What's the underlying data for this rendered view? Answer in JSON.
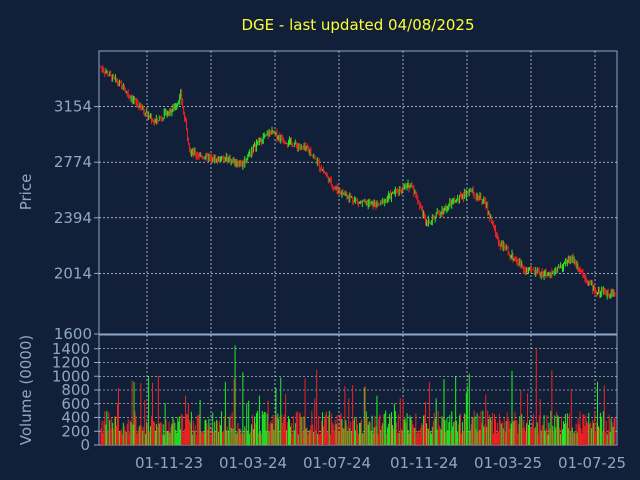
{
  "chart_data": {
    "type": "candlestick",
    "title": "DGE - last updated 04/08/2025",
    "price_panel": {
      "ylabel": "Price",
      "ylim": [
        1600,
        3534
      ],
      "yticks": [
        1600,
        2014,
        2394,
        2774,
        3154
      ],
      "grid": true
    },
    "volume_panel": {
      "ylabel": "Volume (0000)",
      "ylim": [
        0,
        1600
      ],
      "yticks": [
        0,
        200,
        400,
        600,
        800,
        1000,
        1200,
        1400
      ],
      "grid": true
    },
    "x_tick_labels": [
      "01-11-23",
      "01-03-24",
      "01-07-24",
      "01-11-24",
      "01-03-25",
      "01-07-25"
    ],
    "bars_count": 530,
    "price_path": [
      [
        0,
        3420
      ],
      [
        20,
        3300
      ],
      [
        40,
        3150
      ],
      [
        55,
        3050
      ],
      [
        75,
        3140
      ],
      [
        82,
        3230
      ],
      [
        92,
        2840
      ],
      [
        115,
        2790
      ],
      [
        130,
        2800
      ],
      [
        145,
        2760
      ],
      [
        160,
        2900
      ],
      [
        175,
        2980
      ],
      [
        190,
        2920
      ],
      [
        215,
        2850
      ],
      [
        240,
        2600
      ],
      [
        265,
        2500
      ],
      [
        285,
        2480
      ],
      [
        305,
        2580
      ],
      [
        320,
        2620
      ],
      [
        335,
        2360
      ],
      [
        360,
        2490
      ],
      [
        380,
        2580
      ],
      [
        395,
        2500
      ],
      [
        410,
        2220
      ],
      [
        435,
        2050
      ],
      [
        460,
        2000
      ],
      [
        485,
        2120
      ],
      [
        510,
        1880
      ],
      [
        528,
        1880
      ]
    ],
    "colors": {
      "up": "#22ee22",
      "down": "#ee2222",
      "grid": "#ffffff",
      "axes": "#8fa6c8",
      "title": "#ffff33",
      "background": "#112038"
    }
  }
}
